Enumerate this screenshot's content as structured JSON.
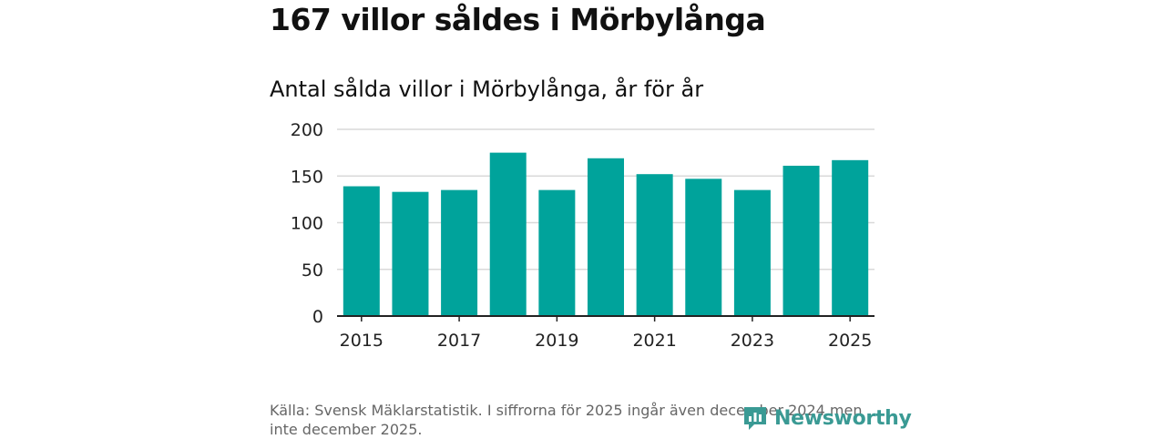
{
  "headline": "167 villor såldes i Mörbylånga",
  "chart_data": {
    "type": "bar",
    "title": "Antal sålda villor i Mörbylånga, år för år",
    "xlabel": "",
    "ylabel": "",
    "categories": [
      "2015",
      "2016",
      "2017",
      "2018",
      "2019",
      "2020",
      "2021",
      "2022",
      "2023",
      "2024",
      "2025"
    ],
    "values": [
      139,
      133,
      135,
      175,
      135,
      169,
      152,
      147,
      135,
      161,
      167
    ],
    "ylim": [
      0,
      200
    ],
    "yticks": [
      "0",
      "50",
      "100",
      "150",
      "200"
    ],
    "xticks": [
      "2015",
      "2017",
      "2019",
      "2021",
      "2023",
      "2025"
    ],
    "grid": true,
    "bar_color": "#00a39b"
  },
  "source_note": "Källa: Svensk Mäklarstatistik. I siffrorna för 2025 ingår även december 2024 men inte december 2025.",
  "brand": {
    "name": "Newsworthy",
    "color": "#3a9a94",
    "icon": "newsworthy-logo-icon"
  }
}
